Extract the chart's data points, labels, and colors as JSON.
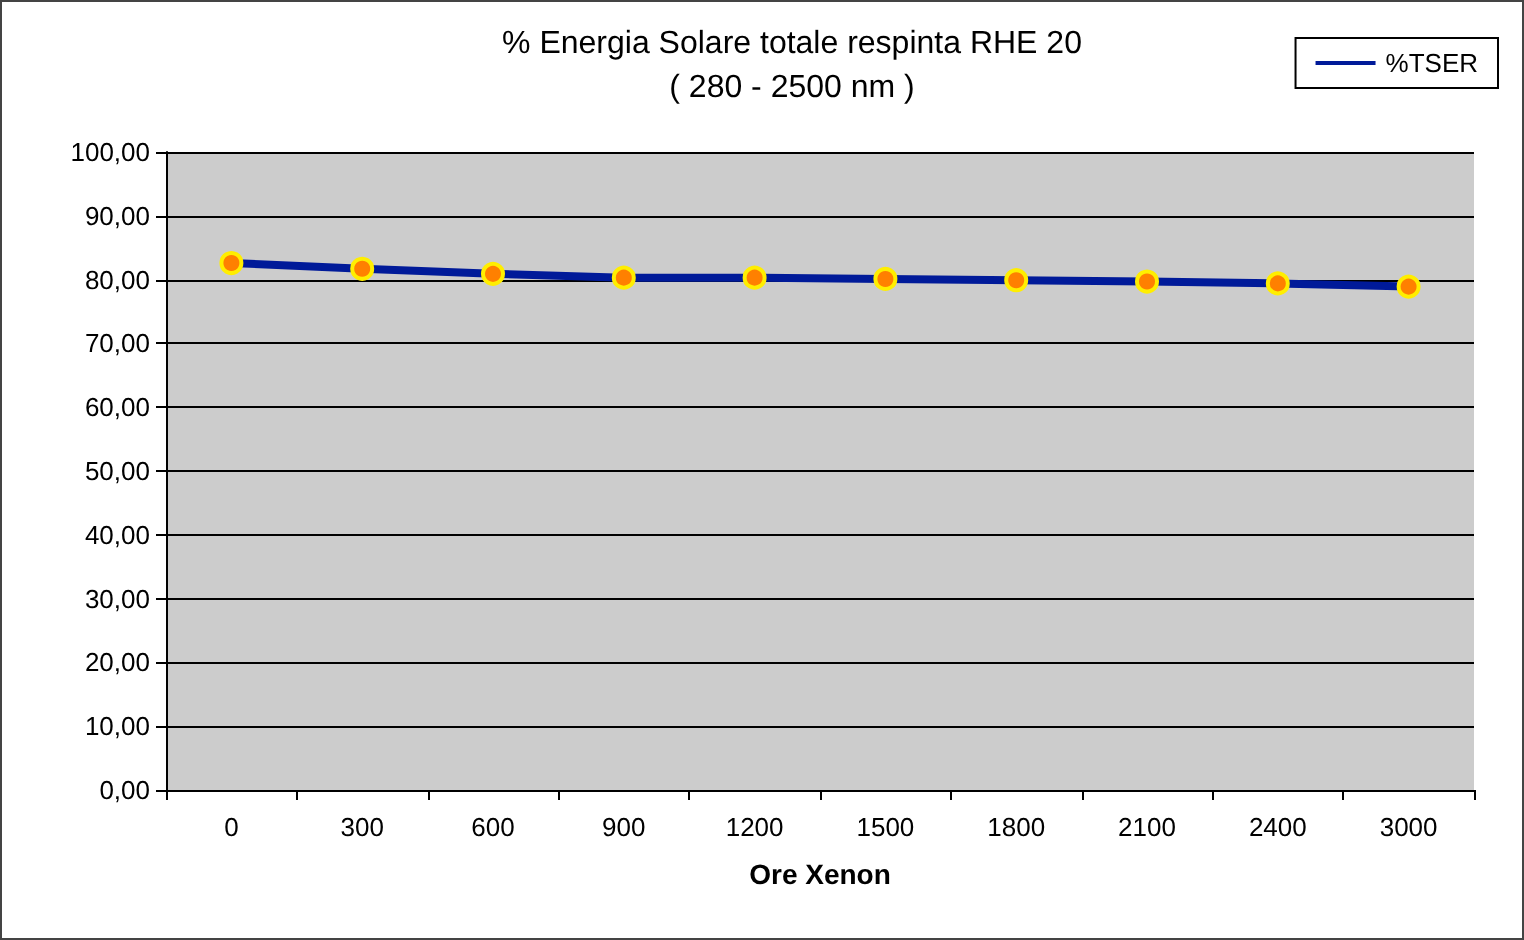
{
  "chart_data": {
    "type": "line",
    "title": "% Energia Solare totale respinta RHE 20",
    "subtitle": "( 280 - 2500 nm )",
    "xlabel": "Ore Xenon",
    "categories": [
      "0",
      "300",
      "600",
      "900",
      "1200",
      "1500",
      "1800",
      "2100",
      "2400",
      "3000"
    ],
    "series": [
      {
        "name": "%TSER",
        "color": "#001a99",
        "values": [
          82.6,
          81.7,
          80.9,
          80.3,
          80.3,
          80.1,
          79.9,
          79.7,
          79.4,
          78.9
        ]
      }
    ],
    "ylim": [
      0,
      100
    ],
    "yticks": [
      {
        "value": 0,
        "label": "0,00"
      },
      {
        "value": 10,
        "label": "10,00"
      },
      {
        "value": 20,
        "label": "20,00"
      },
      {
        "value": 30,
        "label": "30,00"
      },
      {
        "value": 40,
        "label": "40,00"
      },
      {
        "value": 50,
        "label": "50,00"
      },
      {
        "value": 60,
        "label": "60,00"
      },
      {
        "value": 70,
        "label": "70,00"
      },
      {
        "value": 80,
        "label": "80,00"
      },
      {
        "value": 90,
        "label": "90,00"
      },
      {
        "value": 100,
        "label": "100,00"
      }
    ],
    "grid": "y",
    "legend": "top right",
    "marker": "circle",
    "line_style": "solid"
  }
}
